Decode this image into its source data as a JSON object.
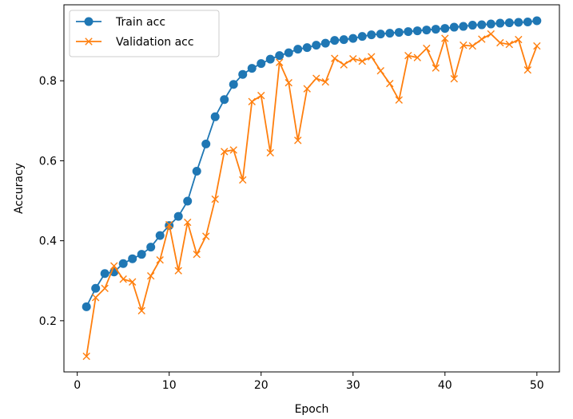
{
  "chart_data": {
    "type": "line",
    "title": "",
    "xlabel": "Epoch",
    "ylabel": "Accuracy",
    "xlim": [
      -1.45,
      52.45
    ],
    "ylim": [
      0.072,
      0.99
    ],
    "xticks": [
      0,
      10,
      20,
      30,
      40,
      50
    ],
    "yticks": [
      0.2,
      0.4,
      0.6,
      0.8
    ],
    "grid": false,
    "legend_position": "upper-left",
    "x": [
      1,
      2,
      3,
      4,
      5,
      6,
      7,
      8,
      9,
      10,
      11,
      12,
      13,
      14,
      15,
      16,
      17,
      18,
      19,
      20,
      21,
      22,
      23,
      24,
      25,
      26,
      27,
      28,
      29,
      30,
      31,
      32,
      33,
      34,
      35,
      36,
      37,
      38,
      39,
      40,
      41,
      42,
      43,
      44,
      45,
      46,
      47,
      48,
      49,
      50
    ],
    "series": [
      {
        "name": "Train acc",
        "color": "#1f77b4",
        "marker": "circle",
        "values": [
          0.235,
          0.281,
          0.318,
          0.322,
          0.343,
          0.355,
          0.366,
          0.384,
          0.413,
          0.438,
          0.461,
          0.499,
          0.574,
          0.642,
          0.71,
          0.753,
          0.791,
          0.816,
          0.831,
          0.843,
          0.854,
          0.863,
          0.87,
          0.879,
          0.883,
          0.889,
          0.894,
          0.901,
          0.903,
          0.906,
          0.911,
          0.915,
          0.917,
          0.919,
          0.921,
          0.923,
          0.925,
          0.927,
          0.929,
          0.931,
          0.934,
          0.936,
          0.939,
          0.94,
          0.942,
          0.944,
          0.945,
          0.946,
          0.947,
          0.95
        ]
      },
      {
        "name": "Validation acc",
        "color": "#ff7f0e",
        "marker": "x",
        "values": [
          0.111,
          0.258,
          0.281,
          0.337,
          0.304,
          0.297,
          0.225,
          0.312,
          0.352,
          0.44,
          0.325,
          0.446,
          0.366,
          0.411,
          0.504,
          0.623,
          0.627,
          0.552,
          0.748,
          0.763,
          0.62,
          0.846,
          0.795,
          0.651,
          0.78,
          0.806,
          0.797,
          0.856,
          0.84,
          0.855,
          0.849,
          0.86,
          0.825,
          0.793,
          0.752,
          0.863,
          0.858,
          0.881,
          0.832,
          0.906,
          0.805,
          0.889,
          0.887,
          0.904,
          0.917,
          0.895,
          0.891,
          0.903,
          0.827,
          0.887
        ]
      }
    ]
  }
}
